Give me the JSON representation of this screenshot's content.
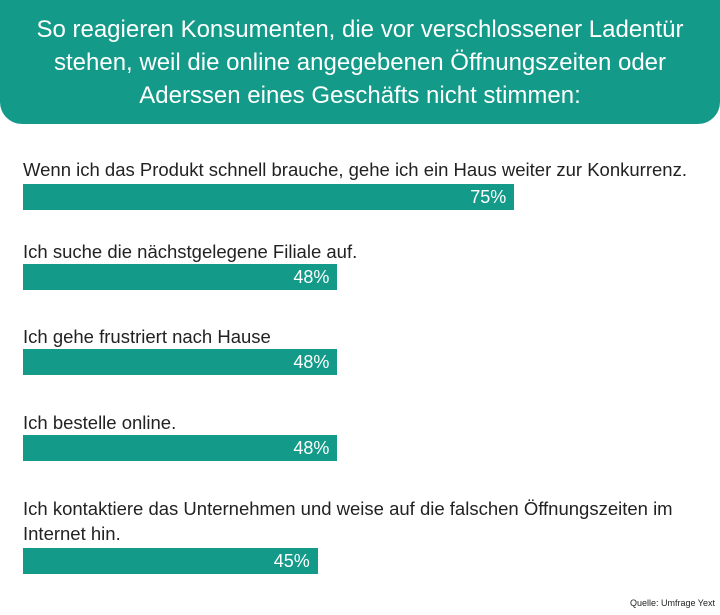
{
  "chart_data": {
    "type": "bar",
    "orientation": "horizontal",
    "title": "So reagieren Konsumenten, die vor verschlossener Ladentür stehen, weil die online angegebenen Öffnungszeiten oder Aderssen eines Geschäfts nicht stimmen:",
    "categories": [
      "Wenn ich das Produkt schnell brauche, gehe ich ein Haus weiter zur Konkurrenz.",
      "Ich suche die nächstgelegene Filiale auf.",
      "Ich gehe frustriert nach Hause",
      "Ich bestelle online.",
      "Ich kontaktiere das Unternehmen und weise auf die falschen Öffnungszeiten im Internet hin."
    ],
    "values": [
      75,
      48,
      48,
      48,
      45
    ],
    "value_labels": [
      "75%",
      "48%",
      "48%",
      "48%",
      "45%"
    ],
    "unit": "%",
    "xlim": [
      0,
      100
    ],
    "source": "Quelle:  Umfrage Yext",
    "colors": {
      "bar": "#139a89",
      "banner": "#139a89",
      "bar_text": "#ffffff"
    },
    "grid": false,
    "legend": "none"
  }
}
